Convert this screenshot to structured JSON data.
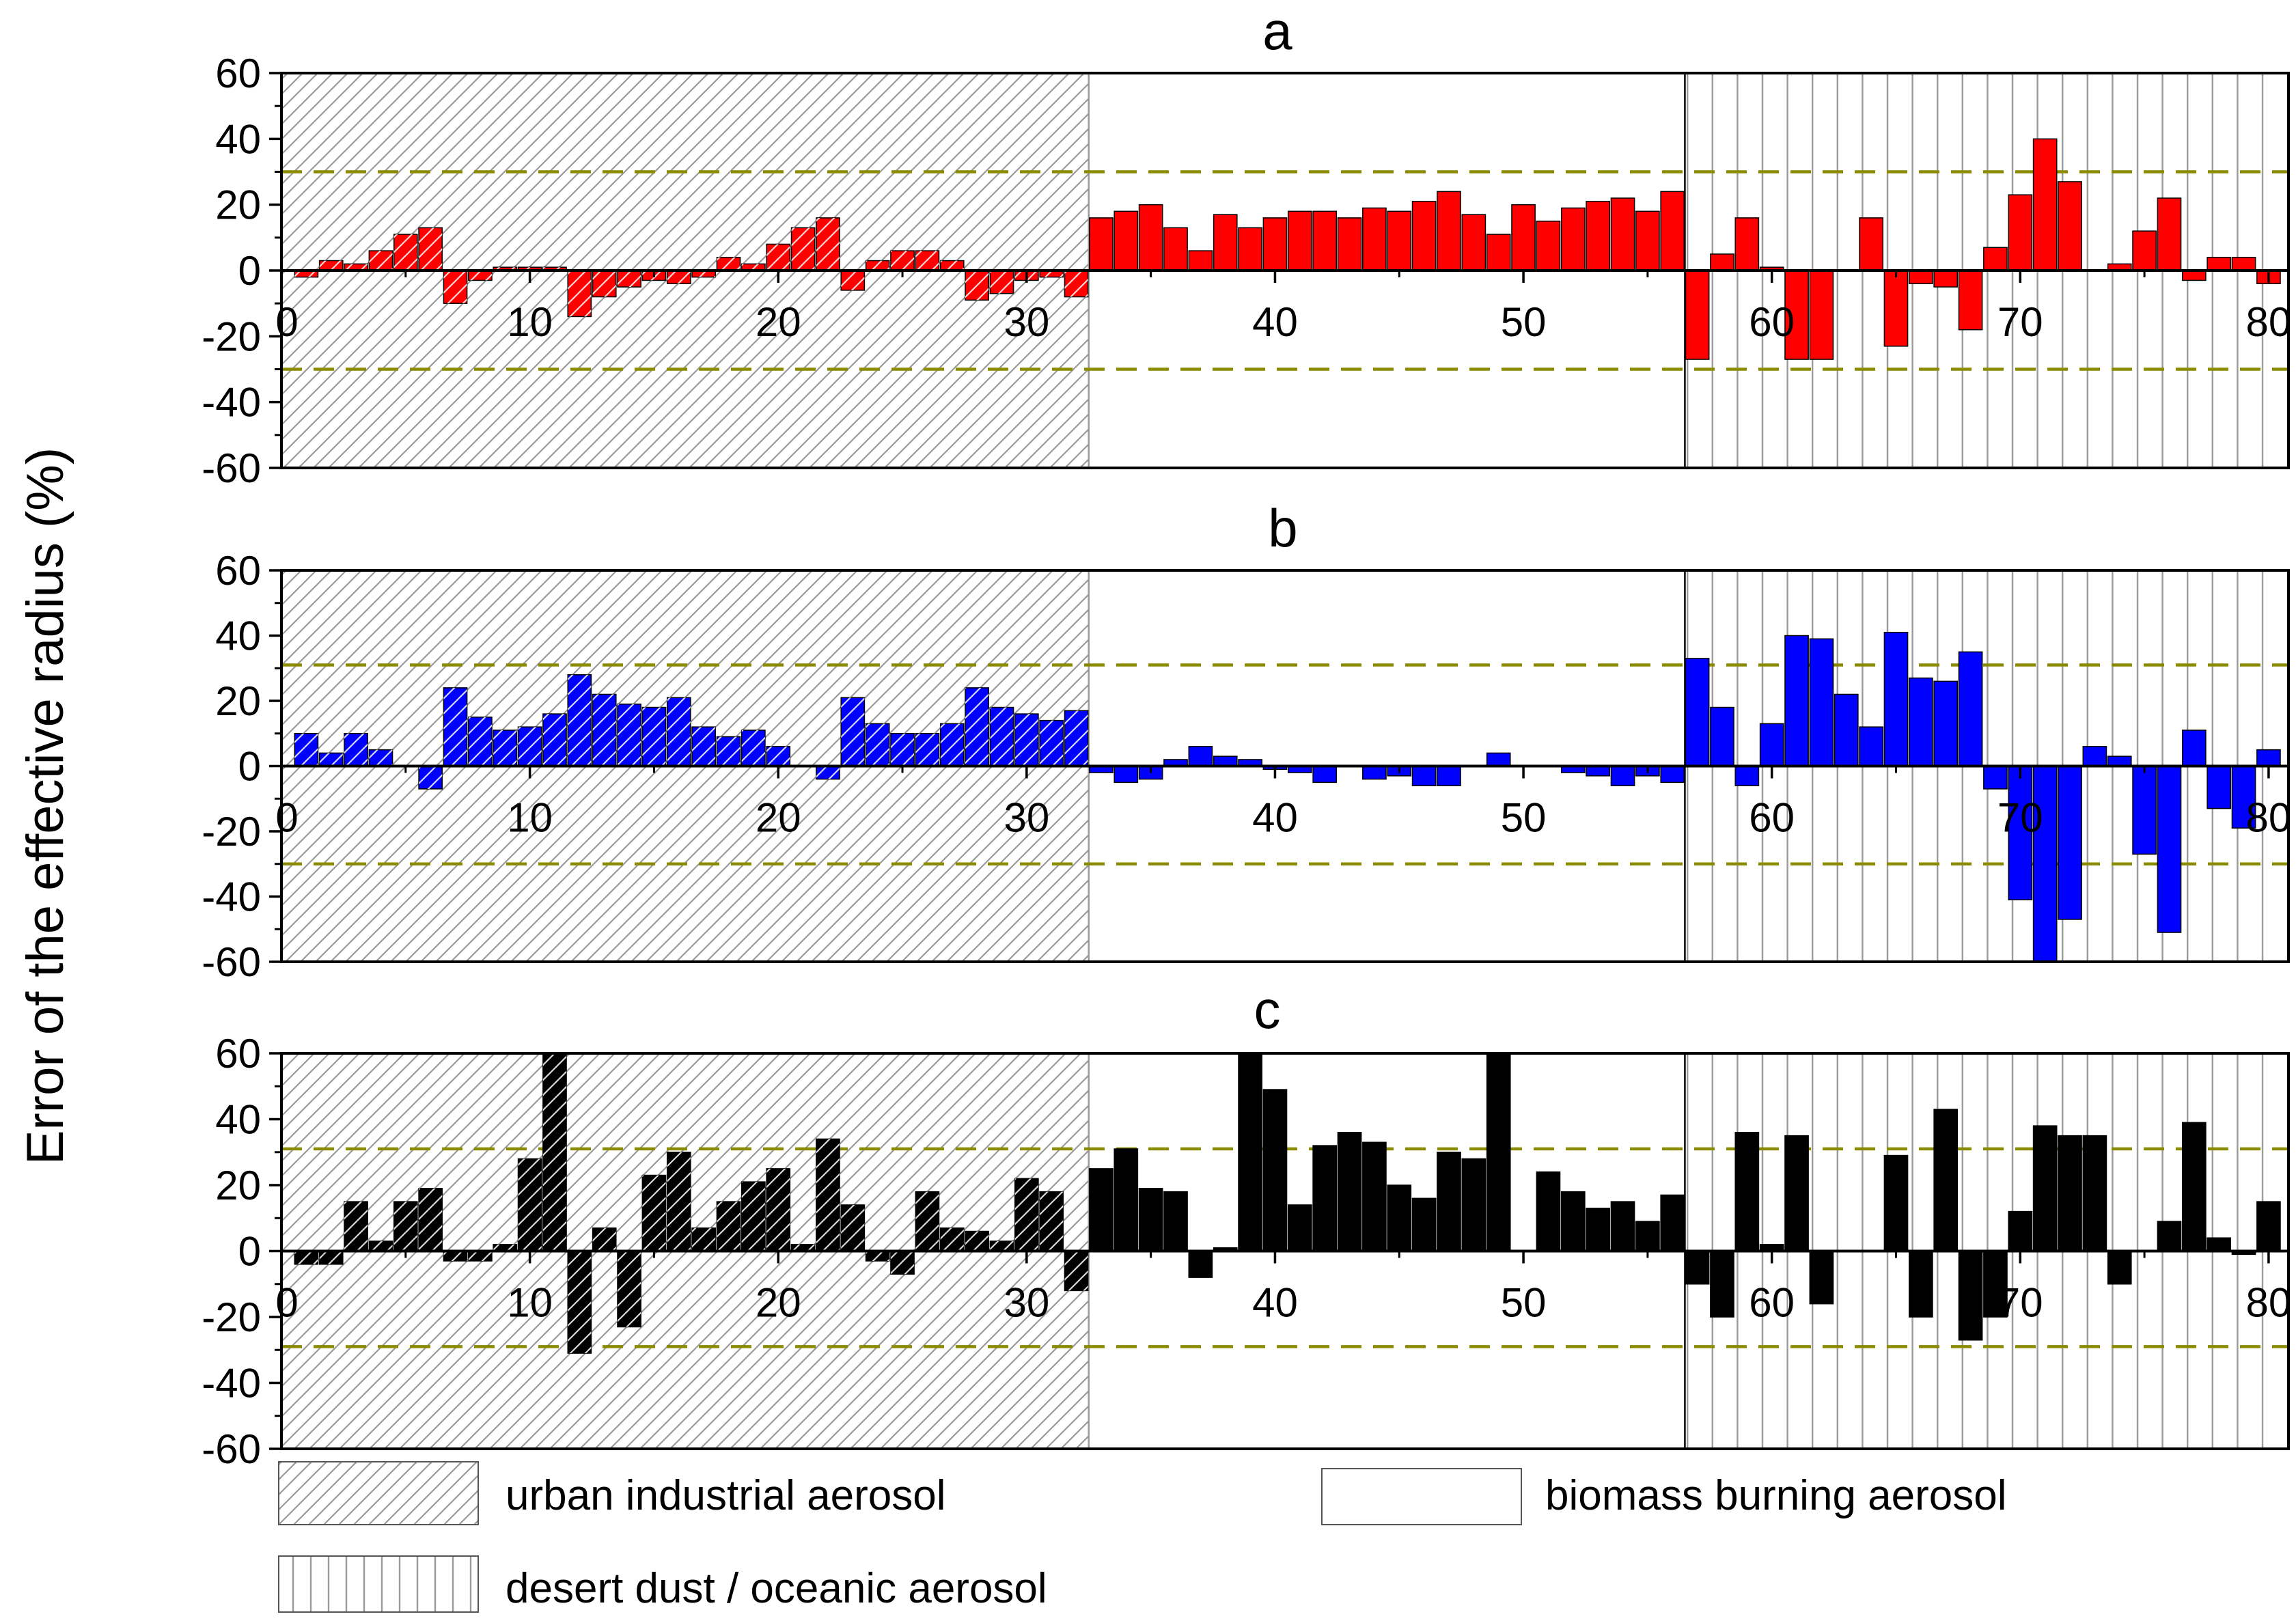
{
  "ylabel": "Error of the effective radius (%)",
  "colors": {
    "a": "#ff0000",
    "b": "#0000ff",
    "c": "#000000",
    "threshold": "#8b8b00",
    "frame": "#000000",
    "hatch": "#9a9a9a"
  },
  "legend": {
    "urban": "urban industrial aerosol",
    "biomass": "biomass burning aerosol",
    "desert": "desert dust / oceanic aerosol"
  },
  "chart_data": [
    {
      "type": "bar",
      "panel_label": "a",
      "xlim": [
        0,
        80
      ],
      "ylim": [
        -60,
        60
      ],
      "xticks": [
        "0",
        "10",
        "20",
        "30",
        "40",
        "50",
        "60",
        "70",
        "80"
      ],
      "yticks": [
        "60",
        "40",
        "20",
        "0",
        "-20",
        "-40",
        "-60"
      ],
      "thresholds": [
        30,
        -30
      ],
      "regions": [
        {
          "type": "urban industrial aerosol",
          "x_range": [
            0,
            32.5
          ]
        },
        {
          "type": "biomass burning aerosol",
          "x_range": [
            32.5,
            56.5
          ]
        },
        {
          "type": "desert dust / oceanic aerosol",
          "x_range": [
            56.5,
            80.5
          ]
        }
      ],
      "x": [
        1,
        2,
        3,
        4,
        5,
        6,
        7,
        8,
        9,
        10,
        11,
        12,
        13,
        14,
        15,
        16,
        17,
        18,
        19,
        20,
        21,
        22,
        23,
        24,
        25,
        26,
        27,
        28,
        29,
        30,
        31,
        32,
        33,
        34,
        35,
        36,
        37,
        38,
        39,
        40,
        41,
        42,
        43,
        44,
        45,
        46,
        47,
        48,
        49,
        50,
        51,
        52,
        53,
        54,
        55,
        56,
        57,
        58,
        59,
        60,
        61,
        62,
        63,
        64,
        65,
        66,
        67,
        68,
        69,
        70,
        71,
        72,
        73,
        74,
        75,
        76,
        77,
        78,
        79,
        80
      ],
      "values": [
        -2,
        3,
        2,
        6,
        11,
        13,
        -10,
        -3,
        1,
        1,
        1,
        -14,
        -8,
        -5,
        -3,
        -4,
        -2,
        4,
        2,
        8,
        13,
        16,
        -6,
        3,
        6,
        6,
        3,
        -9,
        -7,
        -3,
        -2,
        -8,
        16,
        18,
        20,
        13,
        6,
        17,
        13,
        16,
        18,
        18,
        16,
        19,
        18,
        21,
        24,
        17,
        11,
        20,
        15,
        19,
        21,
        22,
        18,
        24,
        -27,
        5,
        16,
        1,
        -27,
        -27,
        0,
        16,
        -23,
        -4,
        -5,
        -18,
        7,
        23,
        40,
        27,
        0,
        2,
        12,
        22,
        -3,
        4,
        4,
        -4
      ]
    },
    {
      "type": "bar",
      "panel_label": "b",
      "xlim": [
        0,
        80
      ],
      "ylim": [
        -60,
        60
      ],
      "xticks": [
        "0",
        "10",
        "20",
        "30",
        "40",
        "50",
        "60",
        "70",
        "80"
      ],
      "yticks": [
        "60",
        "40",
        "20",
        "0",
        "-20",
        "-40",
        "-60"
      ],
      "thresholds": [
        31,
        -30
      ],
      "regions": [
        {
          "type": "urban industrial aerosol",
          "x_range": [
            0,
            32.5
          ]
        },
        {
          "type": "biomass burning aerosol",
          "x_range": [
            32.5,
            56.5
          ]
        },
        {
          "type": "desert dust / oceanic aerosol",
          "x_range": [
            56.5,
            80.5
          ]
        }
      ],
      "x": [
        1,
        2,
        3,
        4,
        5,
        6,
        7,
        8,
        9,
        10,
        11,
        12,
        13,
        14,
        15,
        16,
        17,
        18,
        19,
        20,
        21,
        22,
        23,
        24,
        25,
        26,
        27,
        28,
        29,
        30,
        31,
        32,
        33,
        34,
        35,
        36,
        37,
        38,
        39,
        40,
        41,
        42,
        43,
        44,
        45,
        46,
        47,
        48,
        49,
        50,
        51,
        52,
        53,
        54,
        55,
        56,
        57,
        58,
        59,
        60,
        61,
        62,
        63,
        64,
        65,
        66,
        67,
        68,
        69,
        70,
        71,
        72,
        73,
        74,
        75,
        76,
        77,
        78,
        79,
        80
      ],
      "values": [
        10,
        4,
        10,
        5,
        0,
        -7,
        24,
        15,
        11,
        12,
        16,
        28,
        22,
        19,
        18,
        21,
        12,
        9,
        11,
        6,
        0,
        -4,
        21,
        13,
        10,
        10,
        13,
        24,
        18,
        16,
        14,
        17,
        -2,
        -5,
        -4,
        2,
        6,
        3,
        2,
        -1,
        -2,
        -5,
        0,
        -4,
        -3,
        -6,
        -6,
        0,
        4,
        0,
        0,
        -2,
        -3,
        -6,
        -3,
        -5,
        33,
        18,
        -6,
        13,
        40,
        39,
        22,
        12,
        41,
        27,
        26,
        35,
        -7,
        -41,
        -60,
        -47,
        6,
        3,
        -27,
        -51,
        11,
        -13,
        -19,
        5
      ]
    },
    {
      "type": "bar",
      "panel_label": "c",
      "xlim": [
        0,
        80
      ],
      "ylim": [
        -60,
        60
      ],
      "xticks": [
        "0",
        "10",
        "20",
        "30",
        "40",
        "50",
        "60",
        "70",
        "80"
      ],
      "yticks": [
        "60",
        "40",
        "20",
        "0",
        "-20",
        "-40",
        "-60"
      ],
      "thresholds": [
        31,
        -29
      ],
      "regions": [
        {
          "type": "urban industrial aerosol",
          "x_range": [
            0,
            32.5
          ]
        },
        {
          "type": "biomass burning aerosol",
          "x_range": [
            32.5,
            56.5
          ]
        },
        {
          "type": "desert dust / oceanic aerosol",
          "x_range": [
            56.5,
            80.5
          ]
        }
      ],
      "x": [
        1,
        2,
        3,
        4,
        5,
        6,
        7,
        8,
        9,
        10,
        11,
        12,
        13,
        14,
        15,
        16,
        17,
        18,
        19,
        20,
        21,
        22,
        23,
        24,
        25,
        26,
        27,
        28,
        29,
        30,
        31,
        32,
        33,
        34,
        35,
        36,
        37,
        38,
        39,
        40,
        41,
        42,
        43,
        44,
        45,
        46,
        47,
        48,
        49,
        50,
        51,
        52,
        53,
        54,
        55,
        56,
        57,
        58,
        59,
        60,
        61,
        62,
        63,
        64,
        65,
        66,
        67,
        68,
        69,
        70,
        71,
        72,
        73,
        74,
        75,
        76,
        77,
        78,
        79,
        80
      ],
      "values": [
        -4,
        -4,
        15,
        3,
        15,
        19,
        -3,
        -3,
        2,
        28,
        60,
        -31,
        7,
        -23,
        23,
        30,
        7,
        15,
        21,
        25,
        2,
        34,
        14,
        -3,
        -7,
        18,
        7,
        6,
        3,
        22,
        18,
        -12,
        25,
        31,
        19,
        18,
        -8,
        1,
        60,
        49,
        14,
        32,
        36,
        33,
        20,
        16,
        30,
        28,
        60,
        0,
        24,
        18,
        13,
        15,
        9,
        17,
        -10,
        -20,
        36,
        2,
        35,
        -16,
        0,
        0,
        29,
        -20,
        43,
        -27,
        -20,
        12,
        38,
        35,
        35,
        -10,
        0,
        9,
        39,
        4,
        -1,
        15
      ]
    }
  ]
}
